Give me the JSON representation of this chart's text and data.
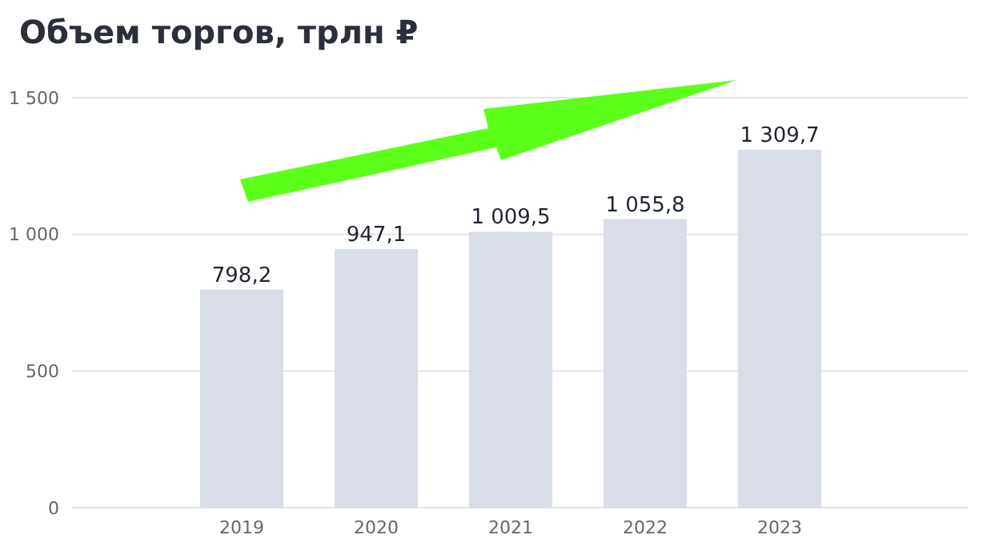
{
  "chart_data": {
    "type": "bar",
    "title": "Объем торгов, трлн ₽",
    "categories": [
      "2019",
      "2020",
      "2021",
      "2022",
      "2023"
    ],
    "values": [
      798.2,
      947.1,
      1009.5,
      1055.8,
      1309.7
    ],
    "value_labels": [
      "798,2",
      "947,1",
      "1 009,5",
      "1 055,8",
      "1 309,7"
    ],
    "color": "#d8dde8",
    "ylim": [
      0,
      1500
    ],
    "yticks": [
      0,
      500,
      {
        "value": 1000,
        "label": "1 000"
      },
      {
        "value": 1500,
        "label": "1 500"
      }
    ],
    "grid": "y"
  }
}
